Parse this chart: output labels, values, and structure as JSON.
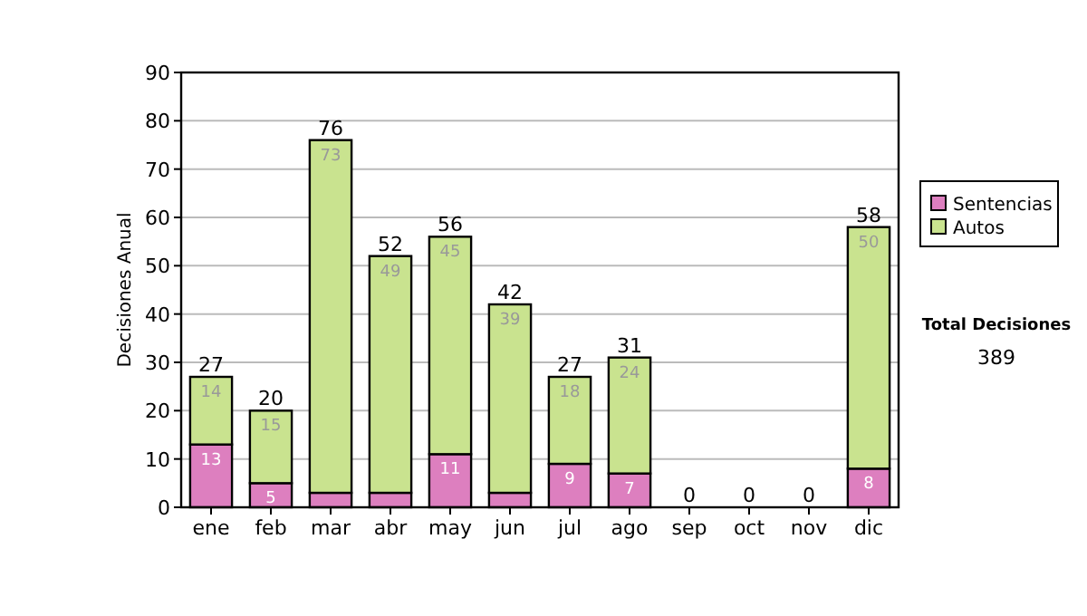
{
  "chart_data": {
    "type": "bar",
    "stacked": true,
    "ylabel": "Decisiones Anual",
    "categories": [
      "ene",
      "feb",
      "mar",
      "abr",
      "may",
      "jun",
      "jul",
      "ago",
      "sep",
      "oct",
      "nov",
      "dic"
    ],
    "series": [
      {
        "name": "Sentencias",
        "color": "#dd7fbf",
        "values": [
          13,
          5,
          3,
          3,
          11,
          3,
          9,
          7,
          0,
          0,
          0,
          8
        ],
        "value_labels": [
          "13",
          "5",
          null,
          null,
          "11",
          null,
          "9",
          "7",
          null,
          null,
          null,
          "8"
        ]
      },
      {
        "name": "Autos",
        "color": "#c9e38f",
        "values": [
          14,
          15,
          73,
          49,
          45,
          39,
          18,
          24,
          0,
          0,
          0,
          50
        ],
        "value_labels": [
          "14",
          "15",
          "73",
          "49",
          "45",
          "39",
          "18",
          "24",
          null,
          null,
          null,
          "50"
        ]
      }
    ],
    "totals": [
      "27",
      "20",
      "76",
      "52",
      "56",
      "42",
      "27",
      "31",
      "0",
      "0",
      "0",
      "58"
    ],
    "ylim": [
      0,
      90
    ],
    "yticks": [
      0,
      10,
      20,
      30,
      40,
      50,
      60,
      70,
      80,
      90
    ],
    "grid": "y",
    "legend": "right",
    "annotations": [
      "Total Decisiones",
      "389"
    ]
  }
}
